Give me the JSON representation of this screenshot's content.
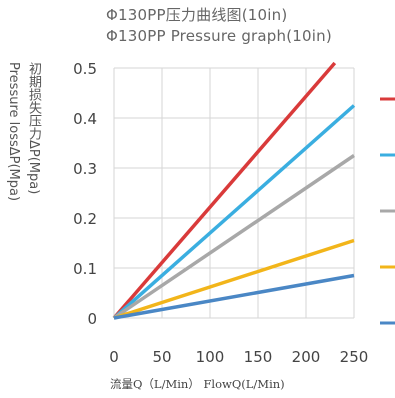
{
  "chart_data": {
    "type": "line",
    "title": "Φ130PP压力曲线图(10in)",
    "subtitle": "Φ130PP Pressure graph(10in)",
    "ylabel_cn": "初期损失压力ΔP(Mpa)",
    "ylabel_en": "Pressure lossΔP(Mpa)",
    "xlabel": "流量Q（L/Min） FlowQ(L/Min)",
    "xlim": [
      0,
      250
    ],
    "ylim": [
      0,
      0.5
    ],
    "x_ticks": [
      "0",
      "50",
      "100",
      "150",
      "200",
      "250"
    ],
    "y_ticks": [
      "0",
      "0.1",
      "0.2",
      "0.3",
      "0.4",
      "0.5"
    ],
    "grid": true,
    "legend": "right",
    "series": [
      {
        "color": "#d93a3a",
        "x": [
          0,
          230
        ],
        "y": [
          0,
          0.51
        ]
      },
      {
        "color": "#3aaee0",
        "x": [
          0,
          250
        ],
        "y": [
          0,
          0.425
        ]
      },
      {
        "color": "#a8a8a8",
        "x": [
          0,
          250
        ],
        "y": [
          0,
          0.325
        ]
      },
      {
        "color": "#f2b51a",
        "x": [
          0,
          250
        ],
        "y": [
          0,
          0.155
        ]
      },
      {
        "color": "#4a87c5",
        "x": [
          0,
          250
        ],
        "y": [
          0,
          0.085
        ]
      }
    ]
  }
}
